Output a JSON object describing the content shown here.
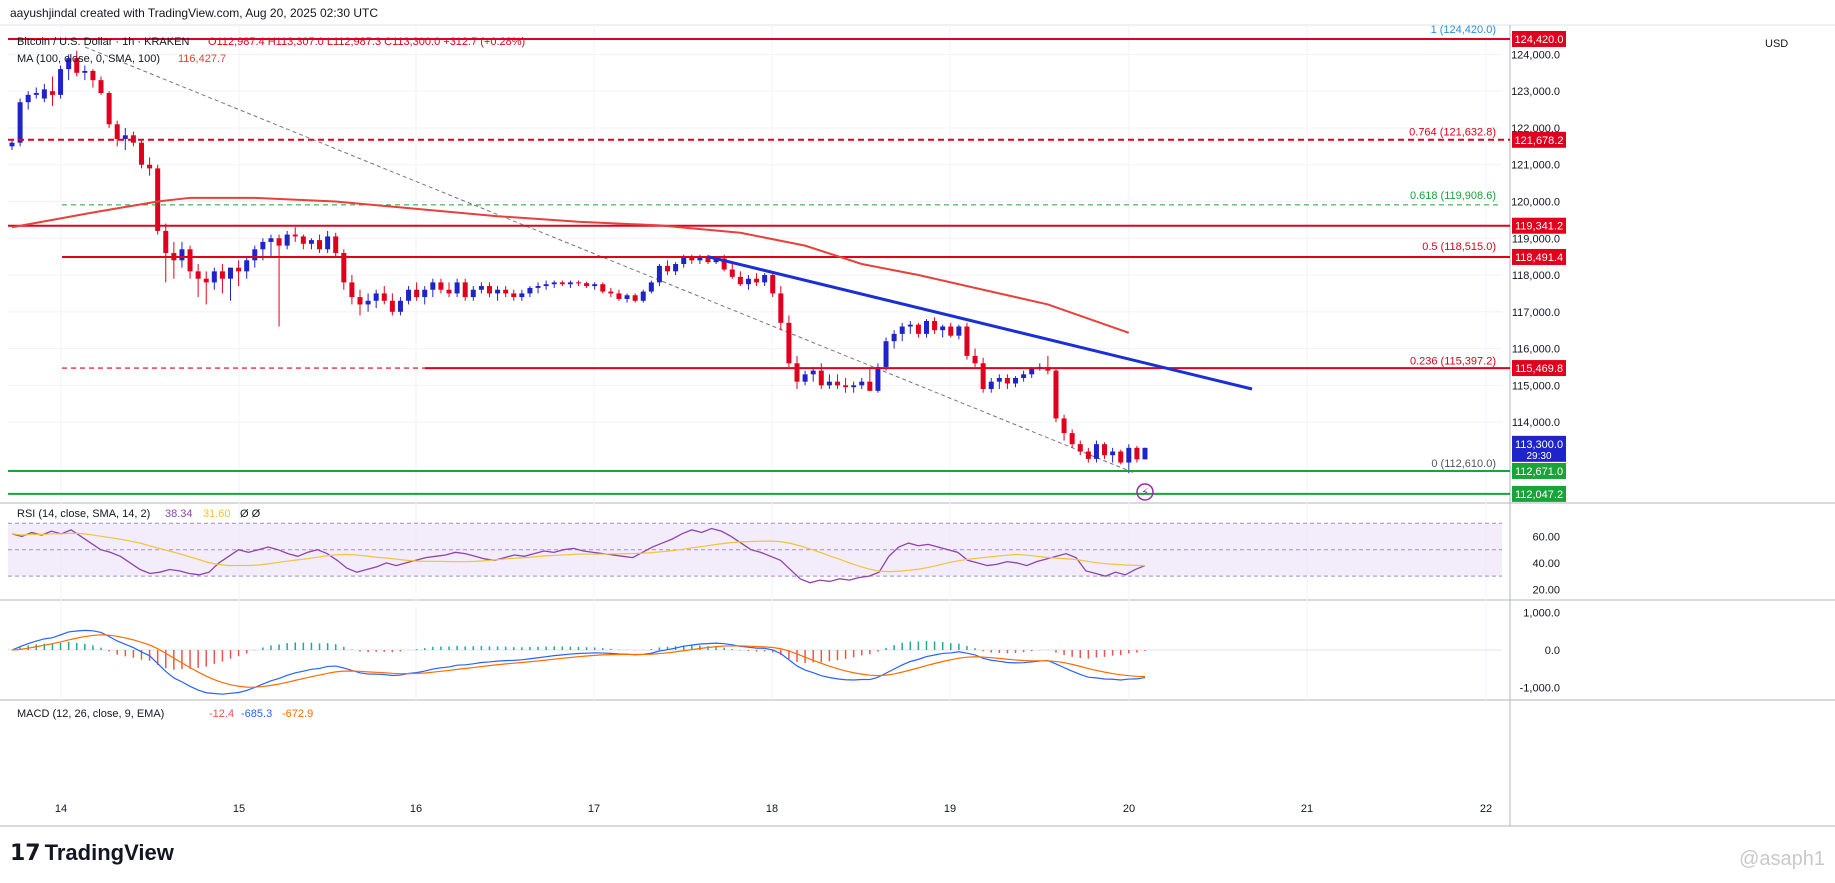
{
  "header": {
    "attribution": "aayushjindal created with TradingView.com, Aug 20, 2025 02:30 UTC",
    "symbol": "Bitcoin / U.S. Dollar · 1h · KRAKEN",
    "ohlc": "O112,987.4 H113,307.0 L112,987.3 C113,300.0 +312.7 (+0.28%)",
    "ma_label": "MA (100, close, 0, SMA, 100)",
    "ma_value": "116,427.7",
    "currency": "USD"
  },
  "footer": {
    "brand": "TradingView",
    "watermark": "@asaph1"
  },
  "colors": {
    "up": "#1f24c8",
    "down": "#e0001d",
    "ma": "#e8403a",
    "trendline": "#1a2fd6",
    "resistance": "#e0001d",
    "support": "#1aa33a",
    "fib_text": "#e0001d",
    "fib_green": "#1aa33a",
    "fib_top": "#2a8fd6",
    "rsi": "#8e44ad",
    "rsi_ma": "#f2c33b",
    "macd": "#2962ff",
    "signal": "#ff6d00",
    "hist_pos": "#26a69a",
    "hist_neg": "#ef5350"
  },
  "chart_data": {
    "type": "candlestick",
    "x_ticks": [
      "14",
      "15",
      "16",
      "17",
      "18",
      "19",
      "20",
      "21",
      "22"
    ],
    "y_ticks": [
      "124,000.0",
      "123,000.0",
      "122,000.0",
      "121,000.0",
      "120,000.0",
      "119,000.0",
      "118,000.0",
      "117,000.0",
      "116,000.0",
      "115,000.0",
      "114,000.0"
    ],
    "ylim": [
      111800,
      124800
    ],
    "candles": [
      [
        121500,
        121700,
        121400,
        121600
      ],
      [
        121600,
        122800,
        121500,
        122700
      ],
      [
        122700,
        123000,
        122500,
        122900
      ],
      [
        122900,
        123100,
        122800,
        122950
      ],
      [
        122800,
        123200,
        122700,
        123050
      ],
      [
        123000,
        123400,
        122600,
        122900
      ],
      [
        122900,
        123700,
        122800,
        123600
      ],
      [
        123600,
        124000,
        123300,
        123900
      ],
      [
        123900,
        124100,
        123400,
        123500
      ],
      [
        123500,
        123700,
        123300,
        123550
      ],
      [
        123550,
        123600,
        123100,
        123300
      ],
      [
        123300,
        123400,
        122900,
        122950
      ],
      [
        122950,
        123000,
        122000,
        122100
      ],
      [
        122100,
        122200,
        121500,
        121700
      ],
      [
        121700,
        122000,
        121400,
        121800
      ],
      [
        121800,
        121900,
        121500,
        121600
      ],
      [
        121600,
        121700,
        120900,
        121000
      ],
      [
        121000,
        121200,
        120700,
        120900
      ],
      [
        120900,
        121000,
        119100,
        119200
      ],
      [
        119200,
        119400,
        117800,
        118600
      ],
      [
        118600,
        118900,
        117900,
        118400
      ],
      [
        118400,
        118900,
        118200,
        118700
      ],
      [
        118700,
        118800,
        117900,
        118100
      ],
      [
        118100,
        118300,
        117400,
        117900
      ],
      [
        117900,
        118100,
        117200,
        117800
      ],
      [
        117800,
        118200,
        117600,
        118100
      ],
      [
        118100,
        118300,
        117500,
        117900
      ],
      [
        117900,
        118200,
        117300,
        118200
      ],
      [
        118200,
        118400,
        117700,
        118100
      ],
      [
        118100,
        118500,
        117900,
        118400
      ],
      [
        118400,
        118800,
        118200,
        118700
      ],
      [
        118700,
        119000,
        118400,
        118900
      ],
      [
        118900,
        119100,
        118500,
        119000
      ],
      [
        119000,
        119100,
        116600,
        118800
      ],
      [
        118800,
        119200,
        118700,
        119100
      ],
      [
        119100,
        119300,
        118900,
        119050
      ],
      [
        119050,
        119100,
        118700,
        118850
      ],
      [
        118850,
        119000,
        118700,
        118950
      ],
      [
        118950,
        119100,
        118600,
        118700
      ],
      [
        118700,
        119200,
        118600,
        119050
      ],
      [
        119050,
        119150,
        118500,
        118600
      ],
      [
        118600,
        118700,
        117600,
        117800
      ],
      [
        117800,
        118000,
        117200,
        117400
      ],
      [
        117400,
        117600,
        116900,
        117200
      ],
      [
        117200,
        117500,
        117000,
        117300
      ],
      [
        117300,
        117600,
        117100,
        117500
      ],
      [
        117500,
        117700,
        117200,
        117300
      ],
      [
        117300,
        117500,
        116900,
        117000
      ],
      [
        117000,
        117400,
        116900,
        117300
      ],
      [
        117300,
        117700,
        117200,
        117600
      ],
      [
        117600,
        117800,
        117300,
        117400
      ],
      [
        117400,
        117700,
        117200,
        117600
      ],
      [
        117600,
        117900,
        117400,
        117800
      ],
      [
        117800,
        117900,
        117500,
        117600
      ],
      [
        117600,
        117800,
        117400,
        117500
      ],
      [
        117500,
        117900,
        117400,
        117800
      ],
      [
        117800,
        117900,
        117300,
        117400
      ],
      [
        117400,
        117700,
        117300,
        117600
      ],
      [
        117600,
        117800,
        117500,
        117700
      ],
      [
        117700,
        117800,
        117400,
        117500
      ],
      [
        117500,
        117700,
        117300,
        117600
      ],
      [
        117600,
        117700,
        117400,
        117500
      ],
      [
        117500,
        117600,
        117300,
        117400
      ],
      [
        117400,
        117600,
        117300,
        117500
      ],
      [
        117500,
        117700,
        117400,
        117650
      ],
      [
        117650,
        117800,
        117500,
        117700
      ],
      [
        117700,
        117850,
        117600,
        117750
      ],
      [
        117750,
        117850,
        117650,
        117800
      ],
      [
        117800,
        117850,
        117700,
        117750
      ],
      [
        117750,
        117850,
        117650,
        117800
      ],
      [
        117800,
        117850,
        117700,
        117780
      ],
      [
        117780,
        117820,
        117650,
        117700
      ],
      [
        117700,
        117800,
        117600,
        117750
      ],
      [
        117750,
        117800,
        117500,
        117550
      ],
      [
        117550,
        117650,
        117400,
        117500
      ],
      [
        117500,
        117600,
        117300,
        117350
      ],
      [
        117350,
        117500,
        117250,
        117450
      ],
      [
        117450,
        117500,
        117250,
        117300
      ],
      [
        117300,
        117600,
        117250,
        117550
      ],
      [
        117550,
        117850,
        117500,
        117800
      ],
      [
        117800,
        118300,
        117700,
        118250
      ],
      [
        118250,
        118400,
        118000,
        118100
      ],
      [
        118100,
        118350,
        118000,
        118300
      ],
      [
        118300,
        118550,
        118200,
        118500
      ],
      [
        118500,
        118550,
        118300,
        118400
      ],
      [
        118400,
        118550,
        118300,
        118500
      ],
      [
        118500,
        118550,
        118300,
        118350
      ],
      [
        118350,
        118500,
        118300,
        118450
      ],
      [
        118450,
        118550,
        118100,
        118150
      ],
      [
        118150,
        118300,
        117900,
        117950
      ],
      [
        117950,
        118100,
        117700,
        117750
      ],
      [
        117750,
        118000,
        117600,
        117900
      ],
      [
        117900,
        118050,
        117700,
        117800
      ],
      [
        117800,
        118050,
        117700,
        118000
      ],
      [
        118000,
        118100,
        117400,
        117500
      ],
      [
        117500,
        117700,
        116500,
        116700
      ],
      [
        116700,
        116900,
        115500,
        115600
      ],
      [
        115600,
        115800,
        114900,
        115100
      ],
      [
        115100,
        115400,
        115000,
        115300
      ],
      [
        115300,
        115500,
        115100,
        115400
      ],
      [
        115400,
        115600,
        114900,
        115000
      ],
      [
        115000,
        115300,
        114900,
        115100
      ],
      [
        115100,
        115300,
        114900,
        115000
      ],
      [
        115000,
        115200,
        114800,
        114950
      ],
      [
        114950,
        115100,
        114800,
        115000
      ],
      [
        115000,
        115200,
        114900,
        115100
      ],
      [
        115100,
        115500,
        114900,
        114850
      ],
      [
        114850,
        115600,
        114800,
        115500
      ],
      [
        115500,
        116300,
        115400,
        116200
      ],
      [
        116200,
        116500,
        116000,
        116400
      ],
      [
        116400,
        116700,
        116200,
        116600
      ],
      [
        116600,
        116750,
        116400,
        116650
      ],
      [
        116650,
        116700,
        116300,
        116400
      ],
      [
        116400,
        116800,
        116300,
        116750
      ],
      [
        116750,
        116850,
        116400,
        116500
      ],
      [
        116500,
        116650,
        116300,
        116600
      ],
      [
        116600,
        116700,
        116300,
        116350
      ],
      [
        116350,
        116650,
        116250,
        116600
      ],
      [
        116600,
        116700,
        115700,
        115800
      ],
      [
        115800,
        116000,
        115500,
        115600
      ],
      [
        115600,
        115750,
        114800,
        114900
      ],
      [
        114900,
        115200,
        114800,
        115100
      ],
      [
        115100,
        115300,
        114900,
        115200
      ],
      [
        115200,
        115300,
        114900,
        115050
      ],
      [
        115050,
        115250,
        114950,
        115200
      ],
      [
        115200,
        115400,
        115100,
        115300
      ],
      [
        115300,
        115500,
        115200,
        115450
      ],
      [
        115450,
        115600,
        115400,
        115500
      ],
      [
        115500,
        115800,
        115300,
        115400
      ],
      [
        115400,
        115450,
        114000,
        114100
      ],
      [
        114100,
        114200,
        113500,
        113700
      ],
      [
        113700,
        113800,
        113300,
        113400
      ],
      [
        113400,
        113500,
        113100,
        113200
      ],
      [
        113200,
        113300,
        112900,
        113000
      ],
      [
        113000,
        113500,
        112900,
        113400
      ],
      [
        113400,
        113450,
        113000,
        113100
      ],
      [
        113100,
        113300,
        112900,
        113200
      ],
      [
        113200,
        113250,
        112850,
        112900
      ],
      [
        112900,
        113400,
        112610,
        113300
      ],
      [
        113300,
        113350,
        112900,
        112987
      ],
      [
        112987,
        113307,
        112987,
        113300
      ]
    ],
    "ma100": [
      [
        0,
        119300
      ],
      [
        10,
        119700
      ],
      [
        18,
        120000
      ],
      [
        22,
        120100
      ],
      [
        30,
        120100
      ],
      [
        40,
        120000
      ],
      [
        50,
        119800
      ],
      [
        60,
        119600
      ],
      [
        70,
        119450
      ],
      [
        80,
        119350
      ],
      [
        90,
        119150
      ],
      [
        98,
        118800
      ],
      [
        105,
        118300
      ],
      [
        112,
        118000
      ],
      [
        120,
        117600
      ],
      [
        128,
        117200
      ],
      [
        138,
        116427.7
      ]
    ],
    "horizontal_levels": [
      {
        "label": "124,420.0",
        "value": 124420,
        "style": "solid",
        "color": "#e0001d"
      },
      {
        "label": "121,678.2",
        "value": 121678.2,
        "style": "dashed",
        "color": "#e0001d"
      },
      {
        "label": "119,341.2",
        "value": 119341.2,
        "style": "solid",
        "color": "#e0001d"
      },
      {
        "label": "118,491.4",
        "value": 118491.4,
        "style": "solid",
        "color": "#e0001d"
      },
      {
        "label": "115,469.8",
        "value": 115469.8,
        "style": "solid",
        "color": "#e0001d"
      },
      {
        "label": "112,671.0",
        "value": 112671,
        "style": "solid",
        "color": "#1aa33a"
      },
      {
        "label": "112,047.2",
        "value": 112047.2,
        "style": "solid",
        "color": "#1aa33a"
      }
    ],
    "fib_levels": [
      {
        "label": "1 (124,420.0)",
        "value": 124420,
        "color": "#2a8fd6"
      },
      {
        "label": "0.764 (121,632.8)",
        "value": 121632.8,
        "color": "#e0001d"
      },
      {
        "label": "0.618 (119,908.6)",
        "value": 119908.6,
        "color": "#1aa33a"
      },
      {
        "label": "0.5 (118,515.0)",
        "value": 118515,
        "color": "#e0001d"
      },
      {
        "label": "0.236 (115,397.2)",
        "value": 115397.2,
        "color": "#e0001d"
      },
      {
        "label": "0 (112,610.0)",
        "value": 112610,
        "color": "#555555"
      }
    ],
    "trendline": {
      "from": [
        "Aug 17 ~14:00",
        118500
      ],
      "to": [
        "Aug 20 ~16:00",
        114900
      ]
    },
    "current_price": {
      "label": "113,300.0",
      "countdown": "29:30"
    },
    "rsi": {
      "label": "RSI (14, close, SMA, 14, 2)",
      "value": "38.34",
      "ma_value": "31.60",
      "extra": "Ø Ø",
      "ticks": [
        "60.00",
        "40.00",
        "20.00"
      ],
      "series": [
        62,
        60,
        63,
        61,
        64,
        62,
        65,
        60,
        55,
        50,
        48,
        45,
        40,
        35,
        32,
        33,
        35,
        34,
        32,
        31,
        33,
        40,
        45,
        50,
        48,
        50,
        52,
        50,
        47,
        45,
        48,
        50,
        47,
        42,
        36,
        33,
        35,
        37,
        40,
        38,
        40,
        42,
        44,
        45,
        46,
        48,
        47,
        45,
        43,
        42,
        44,
        46,
        45,
        47,
        49,
        48,
        50,
        51,
        49,
        48,
        47,
        46,
        45,
        44,
        48,
        52,
        55,
        58,
        62,
        65,
        63,
        66,
        64,
        60,
        55,
        50,
        48,
        45,
        42,
        35,
        28,
        25,
        27,
        26,
        28,
        27,
        29,
        30,
        33,
        45,
        52,
        55,
        53,
        54,
        52,
        50,
        48,
        42,
        40,
        38,
        39,
        41,
        40,
        38,
        41,
        43,
        45,
        47,
        44,
        34,
        32,
        30,
        33,
        31,
        35,
        38
      ]
    },
    "macd": {
      "label": "MACD (12, 26, close, 9, EMA)",
      "hist_value": "-12.4",
      "macd_value": "-685.3",
      "signal_value": "-672.9",
      "ticks": [
        "1,000.0",
        "0.0",
        "-1,000.0"
      ]
    }
  }
}
